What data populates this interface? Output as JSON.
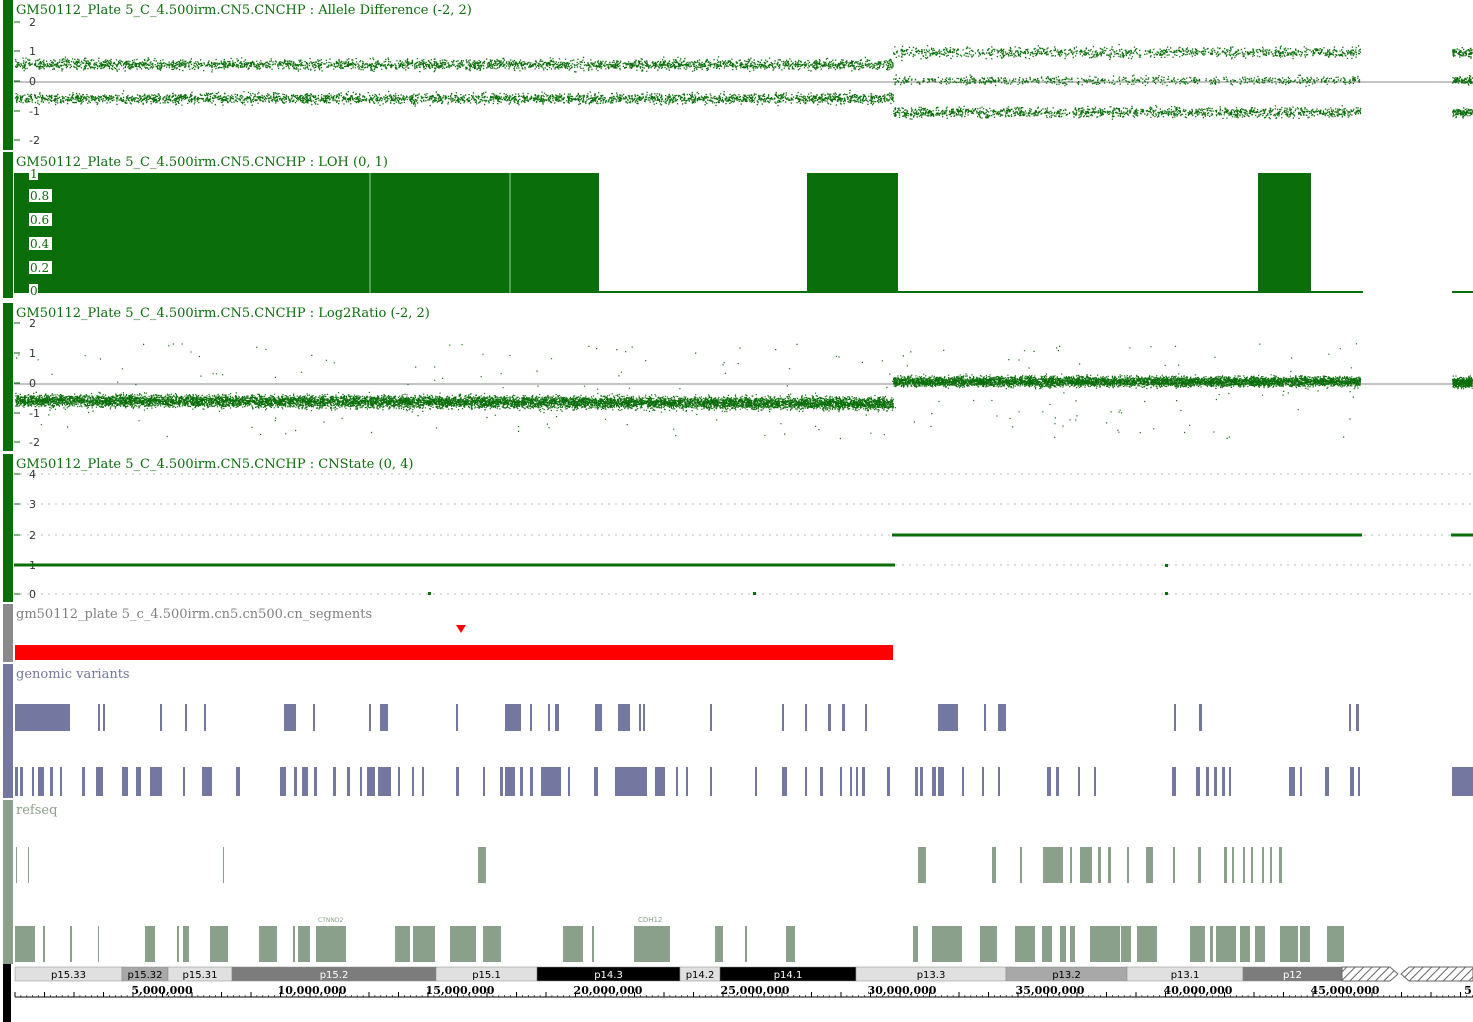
{
  "tracks": {
    "allele": {
      "title": "GM50112_Plate 5_C_4.500irm.CN5.CNCHP : Allele Difference (-2, 2)",
      "ticks": [
        "2",
        "1",
        "0",
        "-1",
        "-2"
      ],
      "color": "#0a6e0a"
    },
    "loh": {
      "title": "GM50112_Plate 5_C_4.500irm.CN5.CNCHP : LOH (0, 1)",
      "ticks": [
        "1",
        "0.8",
        "0.6",
        "0.4",
        "0.2",
        "0"
      ],
      "color": "#0a6e0a"
    },
    "log2": {
      "title": "GM50112_Plate 5_C_4.500irm.CN5.CNCHP : Log2Ratio (-2, 2)",
      "ticks": [
        "2",
        "1",
        "0",
        "-1",
        "-2"
      ],
      "color": "#0a6e0a"
    },
    "cnstate": {
      "title": "GM50112_Plate 5_C_4.500irm.CN5.CNCHP : CNState (0, 4)",
      "ticks": [
        "4",
        "3",
        "2",
        "1",
        "0"
      ],
      "color": "#0a6e0a"
    },
    "segments": {
      "title": "gm50112_plate 5_c_4.500irm.cn5.cn500.cn_segments",
      "color": "#ff0000"
    },
    "variants": {
      "title": "genomic variants",
      "color": "#7478a0"
    },
    "refseq": {
      "title": "refseq",
      "color": "#8aa08a",
      "gene_labels": [
        "CTNND2",
        "CDH12"
      ]
    }
  },
  "ideogram": {
    "bands": [
      "p15.33",
      "p15.32",
      "p15.31",
      "p15.2",
      "p15.1",
      "p14.3",
      "p14.2",
      "p14.1",
      "p13.3",
      "p13.2",
      "p13.1",
      "p12"
    ]
  },
  "ruler": {
    "labels": [
      "5,000,000",
      "10,000,000",
      "15,000,000",
      "20,000,000",
      "25,000,000",
      "30,000,000",
      "35,000,000",
      "40,000,000",
      "45,000,000",
      "5"
    ]
  }
}
